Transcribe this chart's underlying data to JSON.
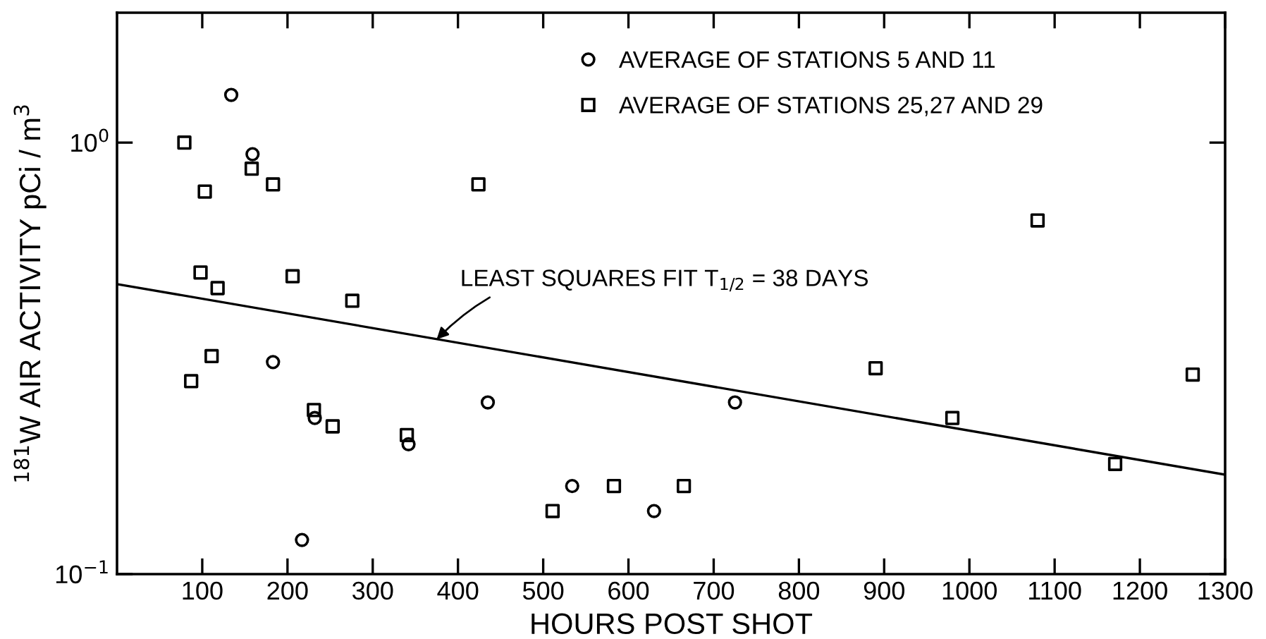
{
  "chart_data": {
    "type": "scatter",
    "xlabel": "HOURS POST SHOT",
    "ylabel": "$^{181}$W AIR ACTIVITY pCi / m$^{3}$",
    "log": "y",
    "xlim": [
      0,
      1300
    ],
    "ylim": [
      0.1,
      2
    ],
    "xticks": [
      100,
      200,
      300,
      400,
      500,
      600,
      700,
      800,
      900,
      1000,
      1100,
      1200,
      1300
    ],
    "yticks": [
      {
        "value": 0.1,
        "label": "10$^{−1}$"
      },
      {
        "value": 1,
        "label": "10$^{0}$"
      }
    ],
    "grid": false,
    "legend": "top",
    "series": [
      {
        "name": "AVERAGE OF STATIONS 5 AND 11",
        "marker": "circle",
        "color": "#000000",
        "x": [
          134,
          159,
          183,
          217,
          232,
          342,
          435,
          534,
          630,
          725
        ],
        "values": [
          1.29,
          0.94,
          0.31,
          0.12,
          0.23,
          0.2,
          0.25,
          0.16,
          0.14,
          0.25
        ]
      },
      {
        "name": "AVERAGE OF STATIONS 25,27 AND 29",
        "marker": "square",
        "color": "#000000",
        "x": [
          79,
          103,
          158,
          183,
          98,
          118,
          206,
          276,
          111,
          87,
          231,
          253,
          340,
          424,
          511,
          583,
          665,
          890,
          980,
          1080,
          1171,
          1262
        ],
        "values": [
          1.0,
          0.77,
          0.87,
          0.8,
          0.5,
          0.46,
          0.49,
          0.43,
          0.32,
          0.28,
          0.24,
          0.22,
          0.21,
          0.8,
          0.14,
          0.16,
          0.16,
          0.3,
          0.23,
          0.66,
          0.18,
          0.29
        ]
      },
      {
        "type": "line",
        "line_style": "solid",
        "marker": "none",
        "color": "#000000",
        "x": [
          0,
          1300
        ],
        "values": [
          0.47,
          0.17
        ]
      }
    ],
    "annotations": [
      {
        "text": "LEAST SQUARES FIT T$_{1/2}$ = 38 DAYS",
        "x": 375,
        "y": 0.35
      }
    ]
  }
}
